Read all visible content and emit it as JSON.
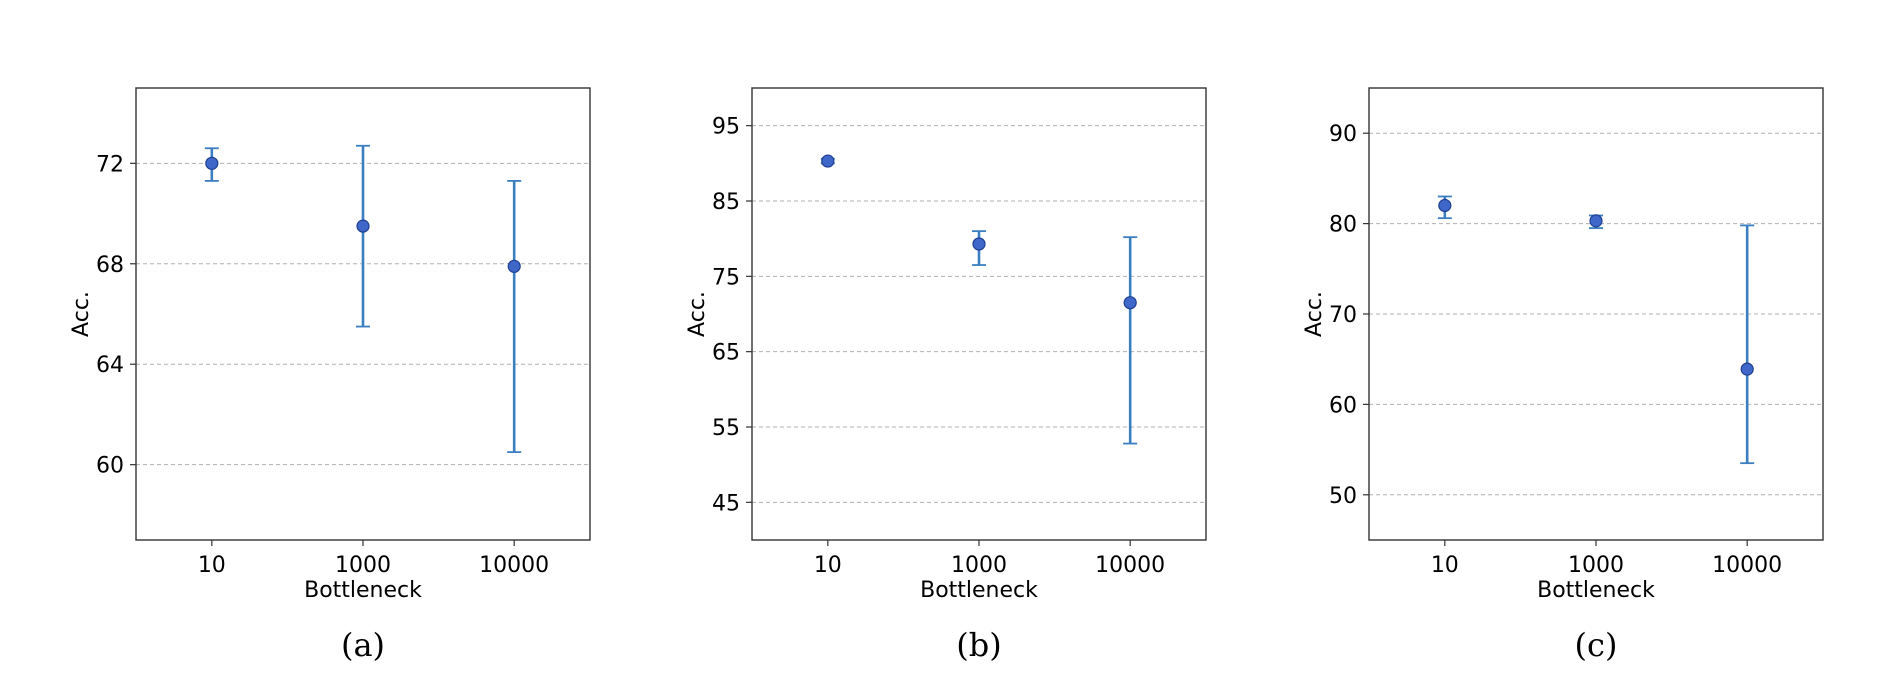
{
  "chart_data": [
    {
      "type": "scatter",
      "caption": "(a)",
      "xlabel": "Bottleneck",
      "ylabel": "Acc.",
      "categories": [
        "10",
        "1000",
        "10000"
      ],
      "ylim": [
        57,
        75
      ],
      "yticks": [
        60,
        64,
        68,
        72
      ],
      "grid": "y-dashed",
      "series": [
        {
          "values": [
            72.0,
            69.5,
            67.9
          ],
          "lower": [
            71.3,
            65.5,
            60.5
          ],
          "upper": [
            72.6,
            72.7,
            71.3
          ]
        }
      ]
    },
    {
      "type": "scatter",
      "caption": "(b)",
      "xlabel": "Bottleneck",
      "ylabel": "Acc.",
      "categories": [
        "10",
        "1000",
        "10000"
      ],
      "ylim": [
        40,
        100
      ],
      "yticks": [
        45,
        55,
        65,
        75,
        85,
        95
      ],
      "grid": "y-dashed",
      "series": [
        {
          "values": [
            90.3,
            79.3,
            71.5
          ],
          "lower": [
            90.0,
            76.5,
            52.8
          ],
          "upper": [
            90.6,
            81.0,
            80.2
          ]
        }
      ]
    },
    {
      "type": "scatter",
      "caption": "(c)",
      "xlabel": "Bottleneck",
      "ylabel": "Acc.",
      "categories": [
        "10",
        "1000",
        "10000"
      ],
      "ylim": [
        45,
        95
      ],
      "yticks": [
        50,
        60,
        70,
        80,
        90
      ],
      "grid": "y-dashed",
      "series": [
        {
          "values": [
            82.0,
            80.3,
            63.9
          ],
          "lower": [
            80.6,
            79.5,
            53.5
          ],
          "upper": [
            83.0,
            80.9,
            79.8
          ]
        }
      ]
    }
  ],
  "colors": {
    "point_fill": "#3f67c9",
    "point_edge": "#1f3f8f",
    "errorbar": "#3b7fc0",
    "grid": "#b0b0b0"
  }
}
